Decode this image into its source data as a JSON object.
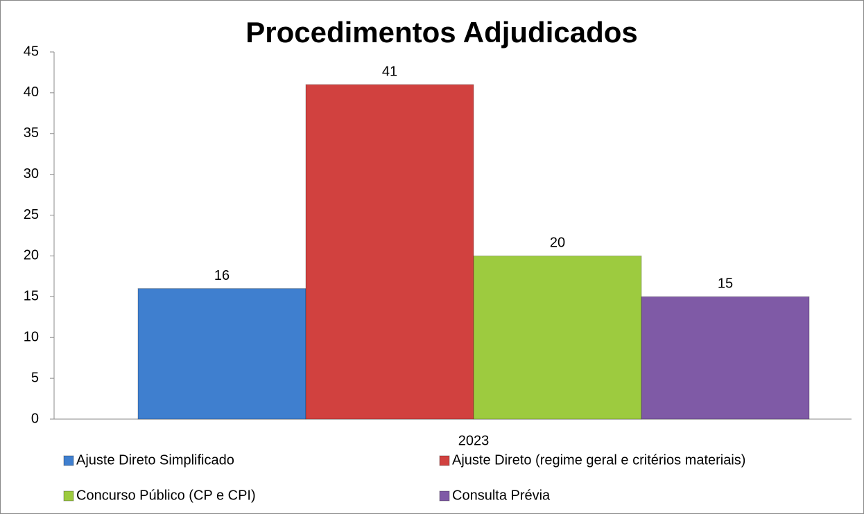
{
  "chart_data": {
    "type": "bar",
    "title": "Procedimentos Adjudicados",
    "categories": [
      "2023"
    ],
    "series": [
      {
        "name": "Ajuste Direto Simplificado",
        "color": "#3f7fcf",
        "values": [
          16
        ]
      },
      {
        "name": "Ajuste Direto (regime geral e critérios materiais)",
        "color": "#d1413f",
        "values": [
          41
        ]
      },
      {
        "name": "Concurso Público (CP e CPI)",
        "color": "#9dcb3f",
        "values": [
          20
        ]
      },
      {
        "name": "Consulta Prévia",
        "color": "#7f5aa6",
        "values": [
          15
        ]
      }
    ],
    "ylim": [
      0,
      45
    ],
    "yticks": [
      0,
      5,
      10,
      15,
      20,
      25,
      30,
      35,
      40,
      45
    ],
    "grid": false,
    "legend": "bottom"
  }
}
